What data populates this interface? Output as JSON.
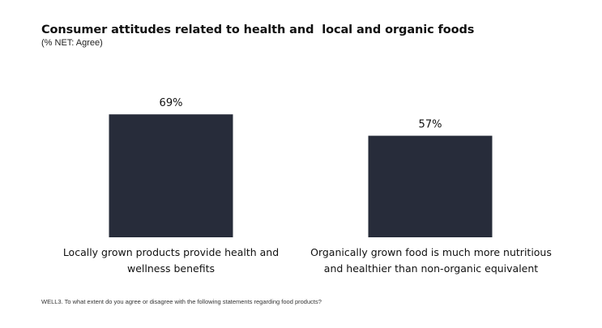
{
  "title": "Consumer attitudes related to health and  local and organic foods",
  "subtitle": "(% NET: Agree)",
  "footnote": "WELL3. To what extent do you agree or disagree with the following statements regarding food products?",
  "colors": {
    "bar": "#272c3a"
  },
  "chart_data": {
    "type": "bar",
    "title": "Consumer attitudes related to health and  local and organic foods",
    "subtitle": "(% NET: Agree)",
    "categories": [
      "Locally grown products provide health and wellness benefits",
      "Organically grown food is much more nutritious and healthier than non-organic equivalent"
    ],
    "values": [
      69,
      57
    ],
    "value_labels": [
      "69%",
      "57%"
    ],
    "ylim": [
      0,
      100
    ],
    "grid": false,
    "legend": "none"
  }
}
